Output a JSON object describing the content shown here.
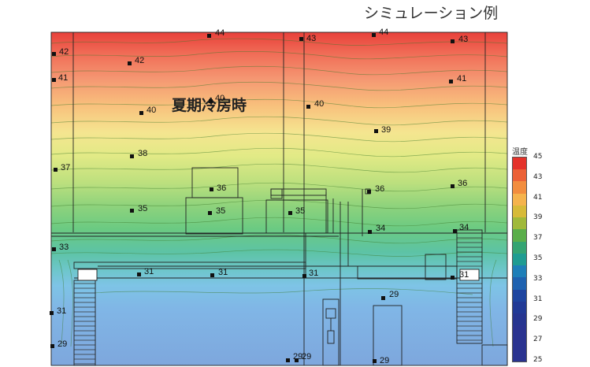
{
  "header": {
    "title": "シミュレーション例"
  },
  "diagram": {
    "label": "夏期冷房時",
    "temperature_points": [
      "44",
      "43",
      "44",
      "43",
      "42",
      "42",
      "41",
      "41",
      "40",
      "40",
      "40",
      "39",
      "38",
      "37",
      "36",
      "36",
      "36",
      "35",
      "35",
      "35",
      "34",
      "34",
      "33",
      "31",
      "31",
      "31",
      "31",
      "29",
      "31",
      "29",
      "29",
      "29",
      "29"
    ]
  },
  "scale": {
    "title": "温度",
    "labels": [
      "45",
      "43",
      "41",
      "39",
      "37",
      "35",
      "33",
      "31",
      "29",
      "27",
      "25"
    ],
    "colors": [
      "#e4322a",
      "#ec6136",
      "#f28d3e",
      "#f5b34c",
      "#d7ba38",
      "#a0b93a",
      "#5aae4a",
      "#34a472",
      "#1f9c92",
      "#1e7fb8",
      "#1f62b0",
      "#1e45a0",
      "#213a96",
      "#263590",
      "#2a3390",
      "#2a3390",
      "#2a3390"
    ]
  }
}
